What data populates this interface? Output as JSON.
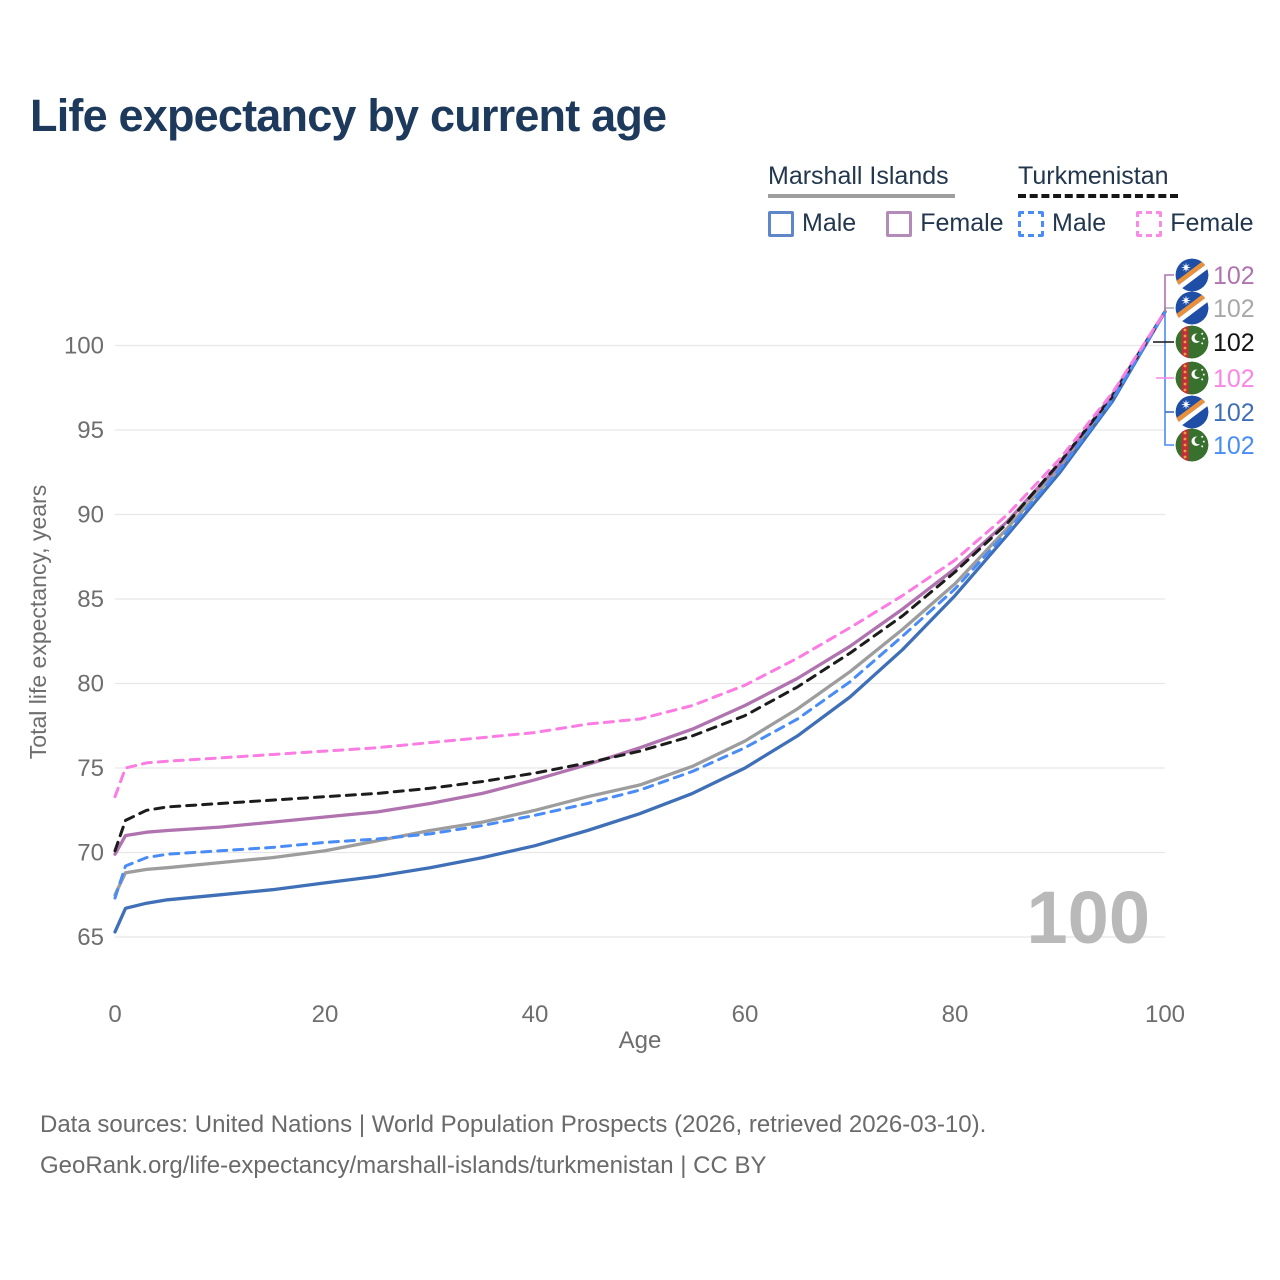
{
  "title": "Life expectancy by current age",
  "legend": {
    "groups": [
      {
        "label": "Marshall Islands",
        "line_style": "solid",
        "underline_color": "#9e9e9e",
        "items": [
          {
            "label": "Male",
            "color": "#5e86c8",
            "dash": false
          },
          {
            "label": "Female",
            "color": "#b48ab8",
            "dash": false
          }
        ]
      },
      {
        "label": "Turkmenistan",
        "line_style": "dashed",
        "underline_color": "#161616",
        "items": [
          {
            "label": "Male",
            "color": "#4a8cf5",
            "dash": true
          },
          {
            "label": "Female",
            "color": "#fb8ae6",
            "dash": true
          }
        ]
      }
    ]
  },
  "chart_data": {
    "type": "line",
    "title": "Life expectancy by current age",
    "xlabel": "Age",
    "ylabel": "Total life expectancy, years",
    "x_ticks": [
      0,
      20,
      40,
      60,
      80,
      100
    ],
    "y_ticks": [
      65,
      70,
      75,
      80,
      85,
      90,
      95,
      100
    ],
    "xlim": [
      0,
      100
    ],
    "ylim": [
      63.5,
      106
    ],
    "grid": "horizontal",
    "legend_position": "top-right",
    "watermark": "100",
    "axis_text_color": "#6e6e6e",
    "grid_color": "#e7e7e7",
    "series": [
      {
        "id": "mi_total",
        "name": "Marshall Islands — Total",
        "country": "Marshall Islands",
        "sex": "Total",
        "color": "#9d9d9d",
        "dash": false,
        "points": [
          [
            0,
            67.5
          ],
          [
            1,
            68.8
          ],
          [
            3,
            69.0
          ],
          [
            5,
            69.1
          ],
          [
            10,
            69.4
          ],
          [
            15,
            69.7
          ],
          [
            20,
            70.1
          ],
          [
            25,
            70.7
          ],
          [
            30,
            71.3
          ],
          [
            35,
            71.8
          ],
          [
            40,
            72.5
          ],
          [
            45,
            73.3
          ],
          [
            50,
            74.0
          ],
          [
            55,
            75.1
          ],
          [
            60,
            76.6
          ],
          [
            65,
            78.5
          ],
          [
            70,
            80.7
          ],
          [
            75,
            83.2
          ],
          [
            80,
            85.9
          ],
          [
            85,
            89.2
          ],
          [
            90,
            92.8
          ],
          [
            95,
            96.9
          ],
          [
            100,
            102
          ]
        ]
      },
      {
        "id": "mi_male",
        "name": "Marshall Islands — Male",
        "country": "Marshall Islands",
        "sex": "Male",
        "color": "#3f70b7",
        "dash": false,
        "points": [
          [
            0,
            65.3
          ],
          [
            1,
            66.7
          ],
          [
            3,
            67.0
          ],
          [
            5,
            67.2
          ],
          [
            10,
            67.5
          ],
          [
            15,
            67.8
          ],
          [
            20,
            68.2
          ],
          [
            25,
            68.6
          ],
          [
            30,
            69.1
          ],
          [
            35,
            69.7
          ],
          [
            40,
            70.4
          ],
          [
            45,
            71.3
          ],
          [
            50,
            72.3
          ],
          [
            55,
            73.5
          ],
          [
            60,
            75.0
          ],
          [
            65,
            76.9
          ],
          [
            70,
            79.2
          ],
          [
            75,
            82.0
          ],
          [
            80,
            85.2
          ],
          [
            85,
            88.8
          ],
          [
            90,
            92.5
          ],
          [
            95,
            96.7
          ],
          [
            100,
            102
          ]
        ]
      },
      {
        "id": "mi_female",
        "name": "Marshall Islands — Female",
        "country": "Marshall Islands",
        "sex": "Female",
        "color": "#b073af",
        "dash": false,
        "points": [
          [
            0,
            69.9
          ],
          [
            1,
            71.0
          ],
          [
            3,
            71.2
          ],
          [
            5,
            71.3
          ],
          [
            10,
            71.5
          ],
          [
            15,
            71.8
          ],
          [
            20,
            72.1
          ],
          [
            25,
            72.4
          ],
          [
            30,
            72.9
          ],
          [
            35,
            73.5
          ],
          [
            40,
            74.3
          ],
          [
            45,
            75.2
          ],
          [
            50,
            76.2
          ],
          [
            55,
            77.3
          ],
          [
            60,
            78.7
          ],
          [
            65,
            80.3
          ],
          [
            70,
            82.2
          ],
          [
            75,
            84.4
          ],
          [
            80,
            86.8
          ],
          [
            85,
            89.6
          ],
          [
            90,
            93.0
          ],
          [
            95,
            97.1
          ],
          [
            100,
            102
          ]
        ]
      },
      {
        "id": "tm_total",
        "name": "Turkmenistan — Total",
        "country": "Turkmenistan",
        "sex": "Total",
        "color": "#1c1c1c",
        "dash": true,
        "points": [
          [
            0,
            70.1
          ],
          [
            1,
            71.9
          ],
          [
            3,
            72.5
          ],
          [
            5,
            72.7
          ],
          [
            10,
            72.9
          ],
          [
            15,
            73.1
          ],
          [
            20,
            73.3
          ],
          [
            25,
            73.5
          ],
          [
            30,
            73.8
          ],
          [
            35,
            74.2
          ],
          [
            40,
            74.7
          ],
          [
            45,
            75.3
          ],
          [
            50,
            76.0
          ],
          [
            55,
            76.9
          ],
          [
            60,
            78.1
          ],
          [
            65,
            79.8
          ],
          [
            70,
            81.8
          ],
          [
            75,
            84.0
          ],
          [
            80,
            86.6
          ],
          [
            85,
            89.5
          ],
          [
            90,
            93.1
          ],
          [
            95,
            97.0
          ],
          [
            100,
            102
          ]
        ]
      },
      {
        "id": "tm_male",
        "name": "Turkmenistan — Male",
        "country": "Turkmenistan",
        "sex": "Male",
        "color": "#4a8cf5",
        "dash": true,
        "points": [
          [
            0,
            67.3
          ],
          [
            1,
            69.2
          ],
          [
            3,
            69.7
          ],
          [
            5,
            69.9
          ],
          [
            10,
            70.1
          ],
          [
            15,
            70.3
          ],
          [
            20,
            70.6
          ],
          [
            25,
            70.8
          ],
          [
            30,
            71.1
          ],
          [
            35,
            71.6
          ],
          [
            40,
            72.2
          ],
          [
            45,
            72.9
          ],
          [
            50,
            73.7
          ],
          [
            55,
            74.8
          ],
          [
            60,
            76.2
          ],
          [
            65,
            77.9
          ],
          [
            70,
            80.1
          ],
          [
            75,
            82.8
          ],
          [
            80,
            85.6
          ],
          [
            85,
            89.0
          ],
          [
            90,
            92.7
          ],
          [
            95,
            96.8
          ],
          [
            100,
            102
          ]
        ]
      },
      {
        "id": "tm_female",
        "name": "Turkmenistan — Female",
        "country": "Turkmenistan",
        "sex": "Female",
        "color": "#fb7ce2",
        "dash": true,
        "points": [
          [
            0,
            73.3
          ],
          [
            1,
            75.0
          ],
          [
            3,
            75.3
          ],
          [
            5,
            75.4
          ],
          [
            10,
            75.6
          ],
          [
            15,
            75.8
          ],
          [
            20,
            76.0
          ],
          [
            25,
            76.2
          ],
          [
            30,
            76.5
          ],
          [
            35,
            76.8
          ],
          [
            40,
            77.1
          ],
          [
            45,
            77.6
          ],
          [
            50,
            77.9
          ],
          [
            55,
            78.7
          ],
          [
            60,
            79.9
          ],
          [
            65,
            81.5
          ],
          [
            70,
            83.3
          ],
          [
            75,
            85.2
          ],
          [
            80,
            87.3
          ],
          [
            85,
            90.0
          ],
          [
            90,
            93.3
          ],
          [
            95,
            97.2
          ],
          [
            100,
            102
          ]
        ]
      }
    ],
    "end_labels": [
      {
        "series": "mi_female",
        "flag": "marshall-islands",
        "text": "102",
        "color": "#b073af"
      },
      {
        "series": "mi_total",
        "flag": "marshall-islands",
        "text": "102",
        "color": "#a8a8a8"
      },
      {
        "series": "tm_total",
        "flag": "turkmenistan",
        "text": "102",
        "color": "#141414"
      },
      {
        "series": "tm_female",
        "flag": "turkmenistan",
        "text": "102",
        "color": "#fb85e4"
      },
      {
        "series": "mi_male",
        "flag": "marshall-islands",
        "text": "102",
        "color": "#3f70b7"
      },
      {
        "series": "tm_male",
        "flag": "turkmenistan",
        "text": "102",
        "color": "#4a8cf5"
      }
    ]
  },
  "footer": {
    "line1": "Data sources: United Nations | World Population Prospects (2026, retrieved 2026-03-10).",
    "line2": "GeoRank.org/life-expectancy/marshall-islands/turkmenistan | CC BY"
  }
}
